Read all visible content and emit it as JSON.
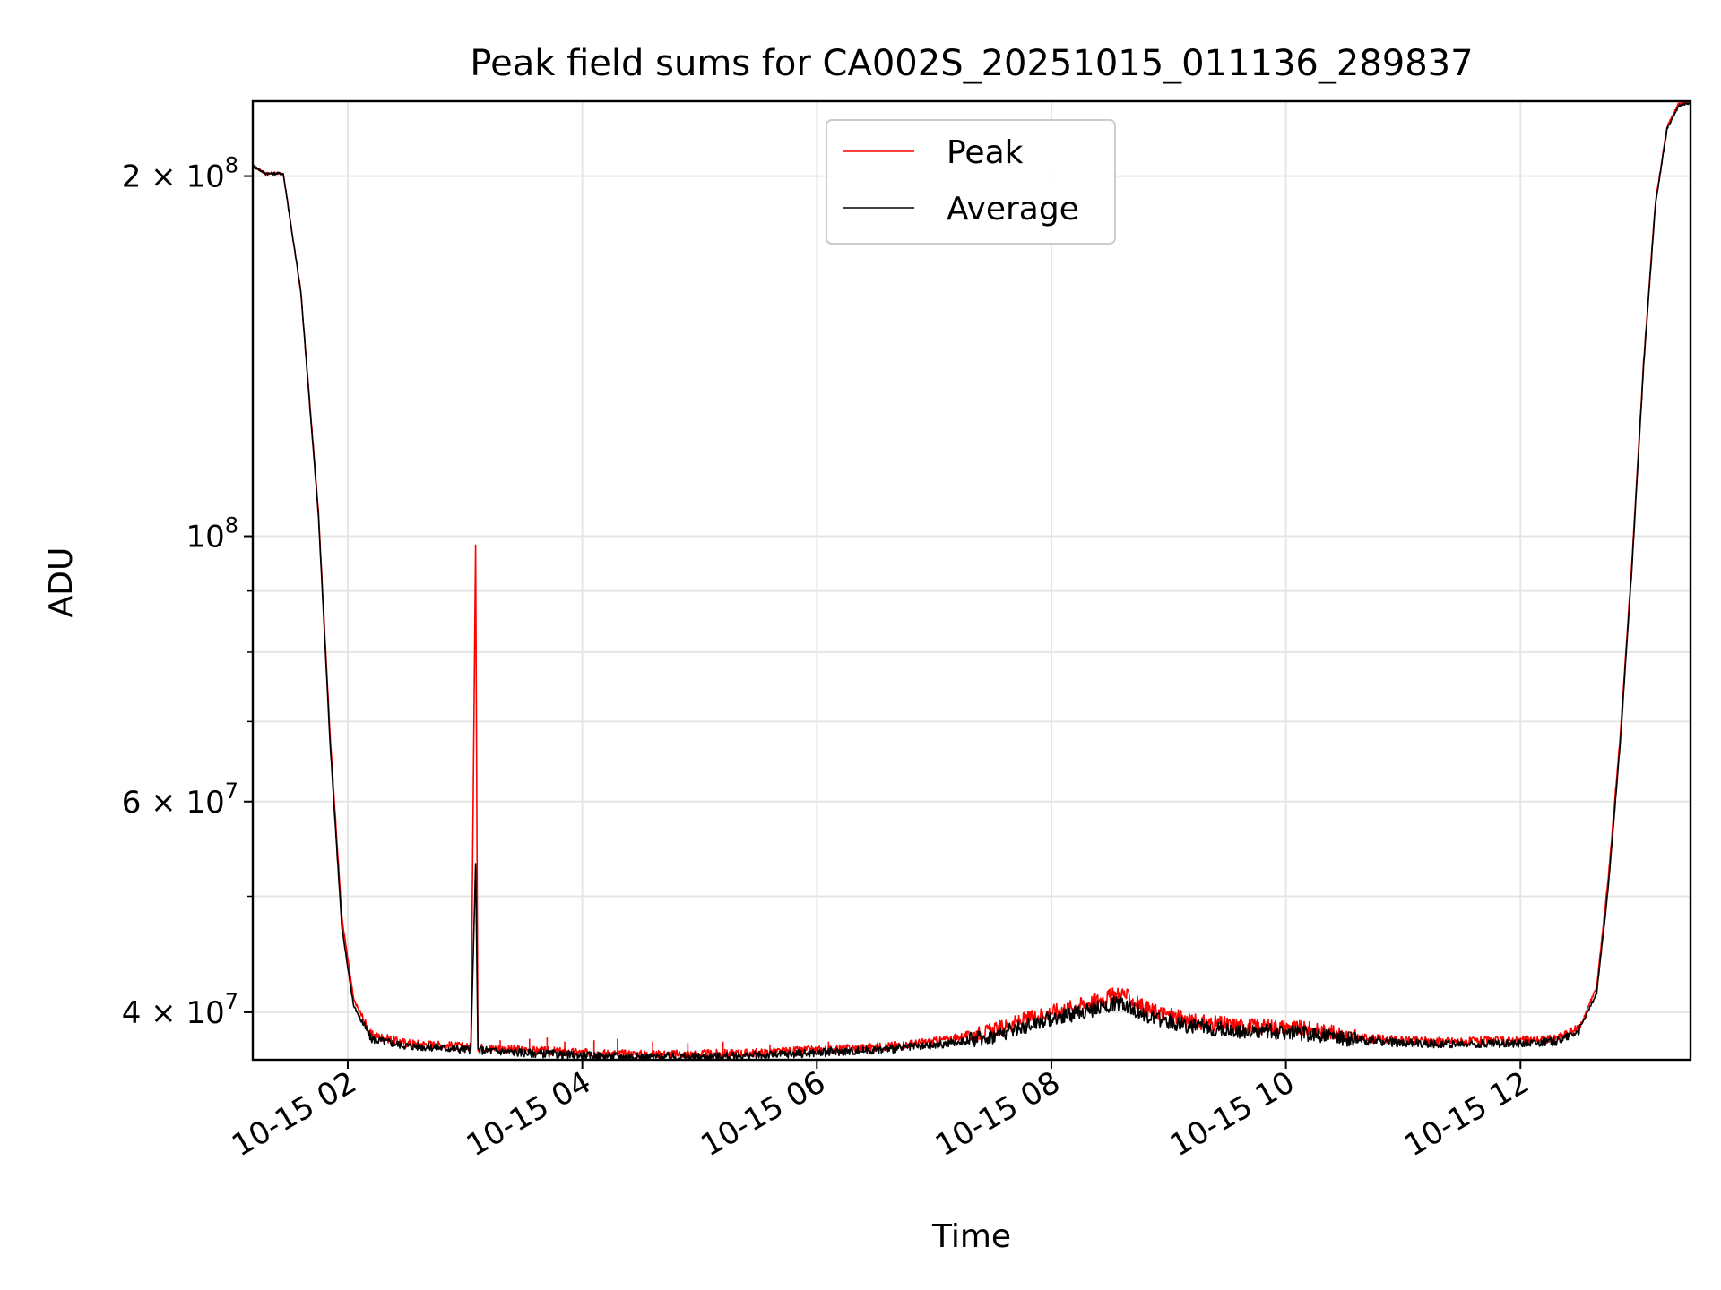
{
  "chart_data": {
    "type": "line",
    "title": "Peak field sums for CA002S_20251015_011136_289837",
    "xlabel": "Time",
    "ylabel": "ADU",
    "yscale": "log",
    "xlim_hours": [
      1.19,
      13.45
    ],
    "ylim": [
      36500000,
      231000000
    ],
    "grid": true,
    "legend_location": "upper center",
    "x_ticks": [
      {
        "hour": 2,
        "label": "10-15 02"
      },
      {
        "hour": 4,
        "label": "10-15 04"
      },
      {
        "hour": 6,
        "label": "10-15 06"
      },
      {
        "hour": 8,
        "label": "10-15 08"
      },
      {
        "hour": 10,
        "label": "10-15 10"
      },
      {
        "hour": 12,
        "label": "10-15 12"
      }
    ],
    "y_major_ticks": [
      {
        "value": 40000000,
        "mantissa": "4",
        "exponent": "7"
      },
      {
        "value": 60000000,
        "mantissa": "6",
        "exponent": "7"
      },
      {
        "value": 100000000,
        "mantissa": "",
        "exponent": "8"
      },
      {
        "value": 200000000,
        "mantissa": "2",
        "exponent": "8"
      }
    ],
    "y_minor_ticks": [
      50000000,
      70000000,
      80000000,
      90000000
    ],
    "series": [
      {
        "name": "Peak",
        "color": "#ff0000",
        "points": [
          [
            1.19,
            204000000
          ],
          [
            1.3,
            201000000
          ],
          [
            1.45,
            201000000
          ],
          [
            1.6,
            160000000
          ],
          [
            1.75,
            105000000
          ],
          [
            1.85,
            68000000
          ],
          [
            1.95,
            48000000
          ],
          [
            2.05,
            41000000
          ],
          [
            2.2,
            38300000
          ],
          [
            2.5,
            37700000
          ],
          [
            2.9,
            37500000
          ],
          [
            3.05,
            37400000
          ],
          [
            3.09,
            99000000
          ],
          [
            3.11,
            37400000
          ],
          [
            3.5,
            37200000
          ],
          [
            4.0,
            37000000
          ],
          [
            4.5,
            36900000
          ],
          [
            5.0,
            36900000
          ],
          [
            5.5,
            37000000
          ],
          [
            6.0,
            37200000
          ],
          [
            6.5,
            37400000
          ],
          [
            7.0,
            37800000
          ],
          [
            7.5,
            38600000
          ],
          [
            7.9,
            39800000
          ],
          [
            8.3,
            40700000
          ],
          [
            8.6,
            41500000
          ],
          [
            8.8,
            40300000
          ],
          [
            9.2,
            39300000
          ],
          [
            9.6,
            39000000
          ],
          [
            10.0,
            38900000
          ],
          [
            10.3,
            38600000
          ],
          [
            10.6,
            38100000
          ],
          [
            11.0,
            37900000
          ],
          [
            11.5,
            37800000
          ],
          [
            12.0,
            37900000
          ],
          [
            12.3,
            38000000
          ],
          [
            12.5,
            38800000
          ],
          [
            12.65,
            42000000
          ],
          [
            12.75,
            52000000
          ],
          [
            12.85,
            68000000
          ],
          [
            12.95,
            95000000
          ],
          [
            13.05,
            140000000
          ],
          [
            13.15,
            190000000
          ],
          [
            13.25,
            220000000
          ],
          [
            13.35,
            230000000
          ],
          [
            13.45,
            231000000
          ]
        ],
        "spikes": [
          [
            3.3,
            37900000
          ],
          [
            3.55,
            38000000
          ],
          [
            3.7,
            38100000
          ],
          [
            3.85,
            37800000
          ],
          [
            4.1,
            37900000
          ],
          [
            4.3,
            38000000
          ],
          [
            4.6,
            37800000
          ],
          [
            4.9,
            37700000
          ],
          [
            5.2,
            37800000
          ],
          [
            5.6,
            37600000
          ],
          [
            6.1,
            37800000
          ]
        ]
      },
      {
        "name": "Average",
        "color": "#000000",
        "points": [
          [
            1.19,
            204000000
          ],
          [
            1.3,
            201000000
          ],
          [
            1.45,
            201000000
          ],
          [
            1.6,
            160000000
          ],
          [
            1.75,
            104000000
          ],
          [
            1.85,
            67000000
          ],
          [
            1.95,
            47000000
          ],
          [
            2.05,
            40500000
          ],
          [
            2.2,
            38000000
          ],
          [
            2.5,
            37500000
          ],
          [
            2.9,
            37300000
          ],
          [
            3.05,
            37200000
          ],
          [
            3.09,
            53000000
          ],
          [
            3.11,
            37200000
          ],
          [
            3.5,
            37000000
          ],
          [
            4.0,
            36800000
          ],
          [
            4.5,
            36700000
          ],
          [
            5.0,
            36700000
          ],
          [
            5.5,
            36800000
          ],
          [
            6.0,
            37000000
          ],
          [
            6.5,
            37200000
          ],
          [
            7.0,
            37500000
          ],
          [
            7.5,
            38200000
          ],
          [
            7.9,
            39300000
          ],
          [
            8.3,
            40100000
          ],
          [
            8.6,
            40800000
          ],
          [
            8.8,
            39700000
          ],
          [
            9.2,
            38900000
          ],
          [
            9.6,
            38600000
          ],
          [
            10.0,
            38500000
          ],
          [
            10.3,
            38300000
          ],
          [
            10.6,
            37900000
          ],
          [
            11.0,
            37700000
          ],
          [
            11.5,
            37600000
          ],
          [
            12.0,
            37700000
          ],
          [
            12.3,
            37800000
          ],
          [
            12.5,
            38600000
          ],
          [
            12.65,
            41500000
          ],
          [
            12.75,
            51000000
          ],
          [
            12.85,
            67000000
          ],
          [
            12.95,
            94000000
          ],
          [
            13.05,
            139000000
          ],
          [
            13.15,
            189000000
          ],
          [
            13.25,
            219000000
          ],
          [
            13.35,
            229000000
          ],
          [
            13.45,
            230500000
          ]
        ]
      }
    ]
  }
}
